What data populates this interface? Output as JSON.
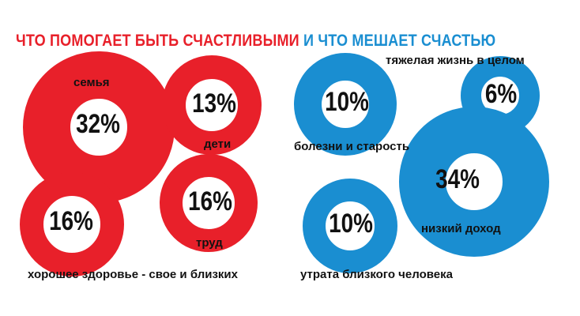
{
  "title": {
    "part1": "ЧТО ПОМОГАЕТ БЫТЬ СЧАСТЛИВЫМИ",
    "part2": "И ЧТО МЕШАЕТ СЧАСТЬЮ"
  },
  "colors": {
    "helps": "#e8202a",
    "hinders": "#1a8ed1",
    "text": "#111111",
    "background": "#ffffff"
  },
  "chart_data": {
    "type": "bubble",
    "unit": "%",
    "groups": [
      {
        "name": "ЧТО ПОМОГАЕТ БЫТЬ СЧАСТЛИВЫМИ",
        "color": "#e8202a",
        "items": [
          {
            "label": "семья",
            "value": 32,
            "value_text": "32%"
          },
          {
            "label": "дети",
            "value": 13,
            "value_text": "13%"
          },
          {
            "label": "хорошее здоровье - свое и близких",
            "value": 16,
            "value_text": "16%"
          },
          {
            "label": "труд",
            "value": 16,
            "value_text": "16%"
          }
        ]
      },
      {
        "name": "И ЧТО МЕШАЕТ СЧАСТЬЮ",
        "color": "#1a8ed1",
        "items": [
          {
            "label": "болезни и старость",
            "value": 10,
            "value_text": "10%"
          },
          {
            "label": "тяжелая жизнь в целом",
            "value": 6,
            "value_text": "6%"
          },
          {
            "label": "низкий доход",
            "value": 34,
            "value_text": "34%"
          },
          {
            "label": "утрата близкого человека",
            "value": 10,
            "value_text": "10%"
          }
        ]
      }
    ]
  }
}
